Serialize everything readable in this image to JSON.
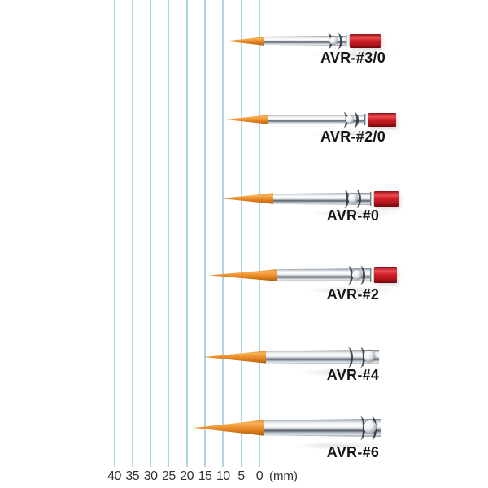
{
  "colors": {
    "line_blue": "#abd6e2",
    "scale_text": "#333333",
    "label_text": "#141414",
    "bristle_orange": "#ef9333",
    "ferrule_silver": "#dfe3e7",
    "handle_red": "#cf1f26"
  },
  "ruler": {
    "unit": "(mm)",
    "marks": [
      "40",
      "35",
      "30",
      "25",
      "20",
      "15",
      "10",
      "5",
      "0"
    ]
  },
  "brushes": [
    {
      "label": "AVR-#3/0",
      "tip_reaches_mm": 9,
      "handle_color": "red"
    },
    {
      "label": "AVR-#2/0",
      "tip_reaches_mm": 9,
      "handle_color": "red"
    },
    {
      "label": "AVR-#0",
      "tip_reaches_mm": 10.5,
      "handle_color": "red"
    },
    {
      "label": "AVR-#2",
      "tip_reaches_mm": 13.5,
      "handle_color": "red"
    },
    {
      "label": "AVR-#4",
      "tip_reaches_mm": 15.5,
      "handle_color": "not-visible"
    },
    {
      "label": "AVR-#6",
      "tip_reaches_mm": 18,
      "handle_color": "not-visible"
    }
  ]
}
